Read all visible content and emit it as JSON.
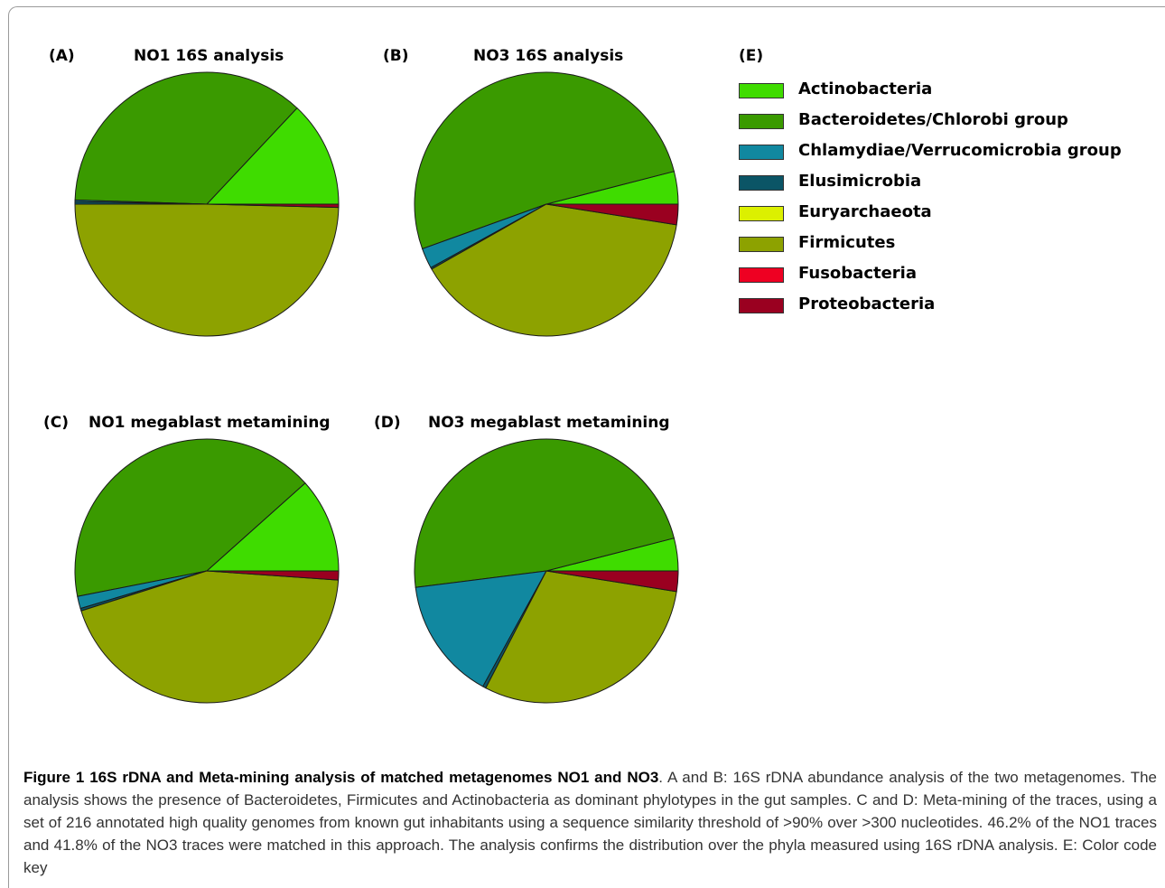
{
  "colors": {
    "Actinobacteria": "#3fdc00",
    "Bacteroidetes/Chlorobi group": "#3a9a00",
    "Chlamydiae/Verrucomicrobia group": "#1188a0",
    "Elusimicrobia": "#0b5566",
    "Euryarchaeota": "#dcf000",
    "Firmicutes": "#8da200",
    "Fusobacteria": "#ee0022",
    "Proteobacteria": "#9a0020"
  },
  "chart_data": [
    {
      "type": "pie",
      "panel": "(A)",
      "title": "NO1 16S analysis",
      "slices": [
        {
          "label": "Actinobacteria",
          "value": 13.0
        },
        {
          "label": "Bacteroidetes/Chlorobi group",
          "value": 36.5
        },
        {
          "label": "Chlamydiae/Verrucomicrobia group",
          "value": 0.2
        },
        {
          "label": "Elusimicrobia",
          "value": 0.3
        },
        {
          "label": "Euryarchaeota",
          "value": 0.0
        },
        {
          "label": "Firmicutes",
          "value": 49.6
        },
        {
          "label": "Fusobacteria",
          "value": 0.0
        },
        {
          "label": "Proteobacteria",
          "value": 0.4
        }
      ]
    },
    {
      "type": "pie",
      "panel": "(B)",
      "title": "NO3 16S analysis",
      "slices": [
        {
          "label": "Actinobacteria",
          "value": 4.0
        },
        {
          "label": "Bacteroidetes/Chlorobi group",
          "value": 51.5
        },
        {
          "label": "Chlamydiae/Verrucomicrobia group",
          "value": 2.5
        },
        {
          "label": "Elusimicrobia",
          "value": 0.2
        },
        {
          "label": "Euryarchaeota",
          "value": 0.0
        },
        {
          "label": "Firmicutes",
          "value": 39.3
        },
        {
          "label": "Fusobacteria",
          "value": 0.0
        },
        {
          "label": "Proteobacteria",
          "value": 2.5
        }
      ]
    },
    {
      "type": "pie",
      "panel": "(C)",
      "title": "NO1 megablast metamining",
      "slices": [
        {
          "label": "Actinobacteria",
          "value": 11.6
        },
        {
          "label": "Bacteroidetes/Chlorobi group",
          "value": 41.5
        },
        {
          "label": "Chlamydiae/Verrucomicrobia group",
          "value": 1.5
        },
        {
          "label": "Elusimicrobia",
          "value": 0.3
        },
        {
          "label": "Euryarchaeota",
          "value": 0.0
        },
        {
          "label": "Firmicutes",
          "value": 44.0
        },
        {
          "label": "Fusobacteria",
          "value": 0.0
        },
        {
          "label": "Proteobacteria",
          "value": 1.1
        }
      ]
    },
    {
      "type": "pie",
      "panel": "(D)",
      "title": "NO3 megablast metamining",
      "slices": [
        {
          "label": "Actinobacteria",
          "value": 4.0
        },
        {
          "label": "Bacteroidetes/Chlorobi group",
          "value": 48.0
        },
        {
          "label": "Chlamydiae/Verrucomicrobia group",
          "value": 15.0
        },
        {
          "label": "Elusimicrobia",
          "value": 0.4
        },
        {
          "label": "Euryarchaeota",
          "value": 0.0
        },
        {
          "label": "Firmicutes",
          "value": 30.1
        },
        {
          "label": "Fusobacteria",
          "value": 0.0
        },
        {
          "label": "Proteobacteria",
          "value": 2.5
        }
      ]
    }
  ],
  "legend": {
    "panel": "(E)",
    "items": [
      {
        "label": "Actinobacteria"
      },
      {
        "label": "Bacteroidetes/Chlorobi group"
      },
      {
        "label": "Chlamydiae/Verrucomicrobia group"
      },
      {
        "label": "Elusimicrobia"
      },
      {
        "label": "Euryarchaeota"
      },
      {
        "label": "Firmicutes"
      },
      {
        "label": "Fusobacteria"
      },
      {
        "label": "Proteobacteria"
      }
    ]
  },
  "caption": {
    "bold": "Figure 1 16S rDNA and Meta-mining analysis of matched metagenomes NO1 and NO3",
    "text": ". A and B: 16S rDNA abundance analysis of the two metagenomes. The analysis shows the presence of Bacteroidetes, Firmicutes and Actinobacteria as dominant phylotypes in the gut samples. C and D: Meta-mining of the traces, using a set of 216 annotated high quality genomes from known gut inhabitants using a sequence similarity threshold of >90% over >300 nucleotides. 46.2% of the NO1 traces and 41.8% of the NO3 traces were matched in this approach. The analysis confirms the distribution over the phyla measured using 16S rDNA analysis. E: Color code key"
  }
}
